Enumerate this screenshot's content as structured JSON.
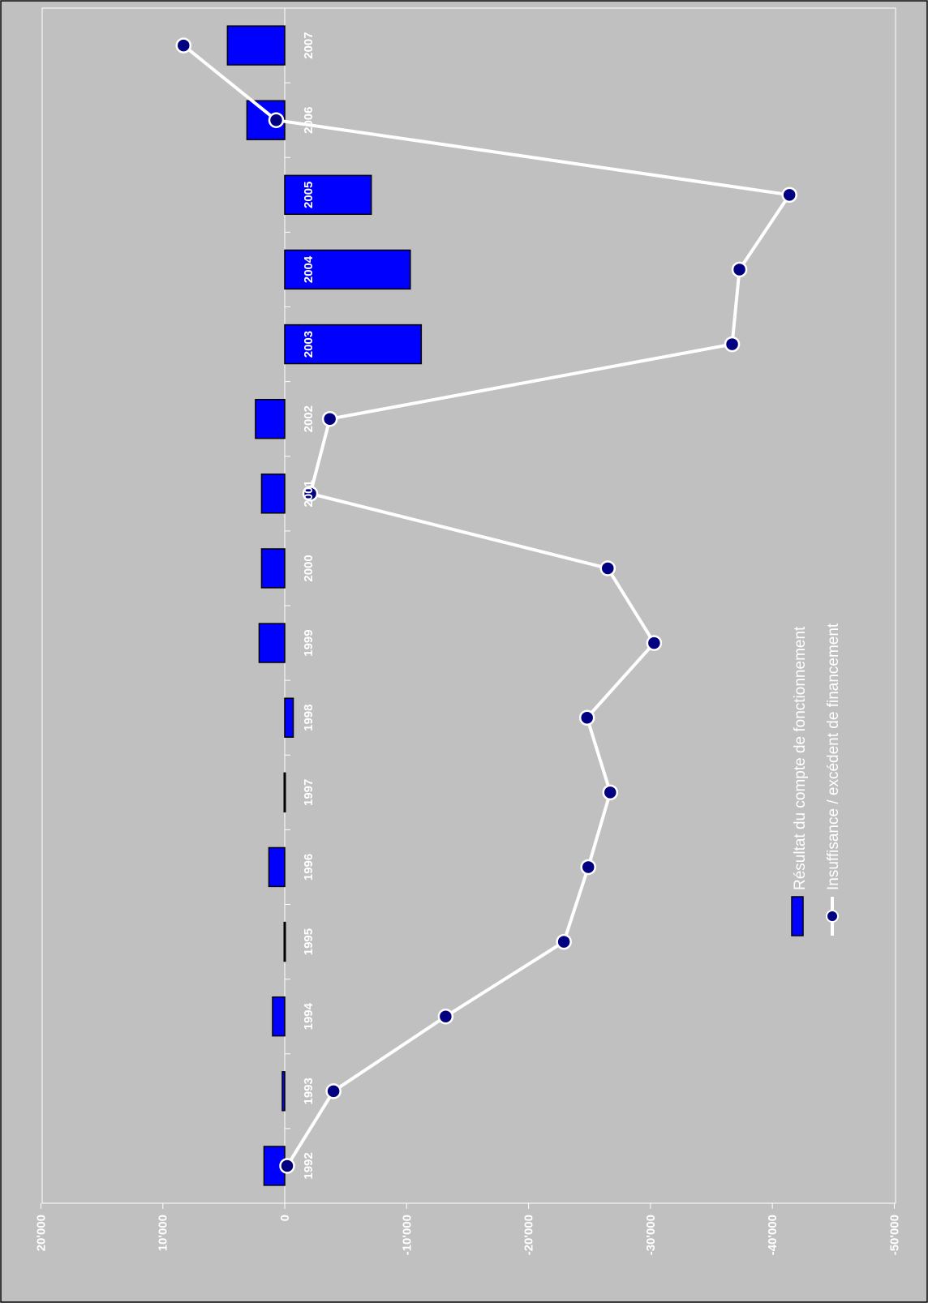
{
  "chart_data": {
    "type": "bar",
    "orientation": "rotated-90-clockwise",
    "categories": [
      "1992",
      "1993",
      "1994",
      "1995",
      "1996",
      "1997",
      "1998",
      "1999",
      "2000",
      "2001",
      "2002",
      "2003",
      "2004",
      "2005",
      "2006",
      "2007"
    ],
    "series": [
      {
        "name": "Résultat du compte de fonctionnement",
        "kind": "bar",
        "values": [
          1700,
          200,
          1000,
          50,
          1300,
          50,
          -700,
          2100,
          1900,
          1900,
          2400,
          -11200,
          -10300,
          -7100,
          3100,
          4700
        ]
      },
      {
        "name": "Insuffisance / excédent de financement",
        "kind": "line",
        "values": [
          -200,
          -4000,
          -13200,
          -22900,
          -24900,
          -26700,
          -24800,
          -30300,
          -26500,
          -2100,
          -3700,
          -36700,
          -37300,
          -41400,
          700,
          8300
        ]
      }
    ],
    "value_axis": {
      "min": -50000,
      "max": 20000,
      "ticks": [
        20000,
        10000,
        0,
        -10000,
        -20000,
        -30000,
        -40000,
        -50000
      ],
      "tick_labels": [
        "20'000",
        "10'000",
        "0",
        "-10'000",
        "-20'000",
        "-30'000",
        "-40'000",
        "-50'000"
      ]
    },
    "grid": false,
    "legend_position": "bottom-left (rotated)",
    "colors": {
      "background": "#c0c0c0",
      "bar_fill": "#0000ff",
      "line": "#ffffff",
      "marker": "#000080",
      "text": "#ffffff"
    }
  }
}
